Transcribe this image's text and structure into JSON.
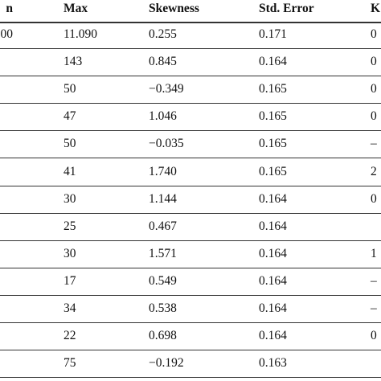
{
  "table": {
    "header": [
      "n",
      "Max",
      "Skewness",
      "Std. Error",
      "K"
    ],
    "rows": [
      [
        "00",
        "11.090",
        "0.255",
        "0.171",
        "0"
      ],
      [
        null,
        "143",
        "0.845",
        "0.164",
        "0"
      ],
      [
        null,
        "50",
        "−0.349",
        "0.165",
        "0"
      ],
      [
        null,
        "47",
        "1.046",
        "0.165",
        "0"
      ],
      [
        null,
        "50",
        "−0.035",
        "0.165",
        "–"
      ],
      [
        null,
        "41",
        "1.740",
        "0.165",
        "2"
      ],
      [
        null,
        "30",
        "1.144",
        "0.164",
        "0"
      ],
      [
        null,
        "25",
        "0.467",
        "0.164",
        null
      ],
      [
        null,
        "30",
        "1.571",
        "0.164",
        "1"
      ],
      [
        null,
        "17",
        "0.549",
        "0.164",
        "–"
      ],
      [
        null,
        "34",
        "0.538",
        "0.164",
        "–"
      ],
      [
        null,
        "22",
        "0.698",
        "0.164",
        "0"
      ],
      [
        null,
        "75",
        "−0.192",
        "0.163",
        null
      ]
    ]
  }
}
